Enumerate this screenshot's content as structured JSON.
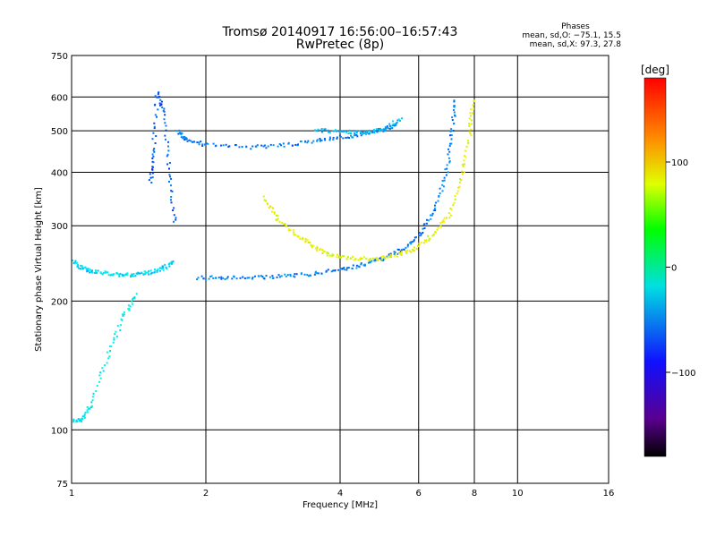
{
  "chart_data": {
    "type": "scatter",
    "title": "Tromsø 20140917 16:56:00–16:57:43",
    "subtitle": "RwPretec (8p)",
    "xlabel": "Frequency [MHz]",
    "ylabel": "Stationary phase Virtual Height [km]",
    "x_scale": "log",
    "y_scale": "log",
    "xlim": [
      1,
      16
    ],
    "ylim": [
      75,
      750
    ],
    "x_ticks": [
      1,
      2,
      4,
      6,
      8,
      10,
      16
    ],
    "y_ticks": [
      75,
      100,
      200,
      300,
      400,
      500,
      600,
      750
    ],
    "x_grid": [
      2,
      4,
      6,
      8,
      10
    ],
    "y_grid": [
      100,
      200,
      300,
      400,
      500,
      600
    ],
    "grid": true,
    "phase_stats": {
      "heading": "Phases",
      "line1": "mean, sd,O: −75.1, 15.5",
      "line2": "mean, sd,X: 97.3, 27.8"
    },
    "colorbar": {
      "label": "[deg]",
      "range": [
        -180,
        180
      ],
      "ticks": [
        {
          "value": 100,
          "label": "100"
        },
        {
          "value": 0,
          "label": "0"
        },
        {
          "value": -100,
          "label": "−100"
        }
      ],
      "colormap": "rainbow (black → purple → blue → cyan → green → yellow → orange → red)"
    },
    "traces": [
      {
        "desc": "F2 O-mode trace (upper)",
        "x": [
          1.72,
          1.8,
          2.0,
          2.5,
          3.0,
          3.5,
          4.0,
          4.5,
          5.0,
          5.3
        ],
        "y": [
          500,
          480,
          465,
          460,
          465,
          475,
          485,
          495,
          505,
          520
        ],
        "phase": -100
      },
      {
        "desc": "F2 O-mode (upper) extension",
        "x": [
          3.5,
          4.0,
          4.5,
          5.0,
          5.5
        ],
        "y": [
          505,
          500,
          498,
          505,
          540
        ],
        "phase": -80
      },
      {
        "desc": "F1/F2 O-mode trace (lower)",
        "x": [
          1.9,
          2.2,
          2.6,
          3.0,
          3.5,
          4.0,
          4.5,
          5.0,
          5.5,
          6.0,
          6.5,
          6.9,
          7.1,
          7.2
        ],
        "y": [
          228,
          228,
          228,
          230,
          233,
          238,
          245,
          253,
          265,
          285,
          330,
          400,
          500,
          600
        ],
        "phase": -100
      },
      {
        "desc": "X-mode trace",
        "x": [
          2.7,
          2.9,
          3.2,
          3.5,
          3.8,
          4.2,
          4.7,
          5.2,
          5.8,
          6.4,
          7.0,
          7.5,
          7.8,
          7.9
        ],
        "y": [
          350,
          310,
          285,
          268,
          258,
          253,
          252,
          255,
          265,
          285,
          320,
          400,
          500,
          600
        ],
        "phase": 95
      },
      {
        "desc": "cusp at ~1.55 MHz",
        "x": [
          1.5,
          1.52,
          1.55,
          1.6,
          1.65,
          1.7
        ],
        "y": [
          380,
          450,
          620,
          560,
          400,
          300
        ],
        "phase": -110
      },
      {
        "desc": "low-frequency trace",
        "x": [
          1.0,
          1.05,
          1.1,
          1.2,
          1.3,
          1.4,
          1.5,
          1.6,
          1.7
        ],
        "y": [
          250,
          240,
          236,
          233,
          231,
          232,
          235,
          240,
          250
        ],
        "phase": -70
      },
      {
        "desc": "low E/Es trace",
        "x": [
          1.0,
          1.05,
          1.1,
          1.2,
          1.3,
          1.4
        ],
        "y": [
          105,
          106,
          115,
          150,
          185,
          210
        ],
        "phase": -60
      }
    ]
  }
}
